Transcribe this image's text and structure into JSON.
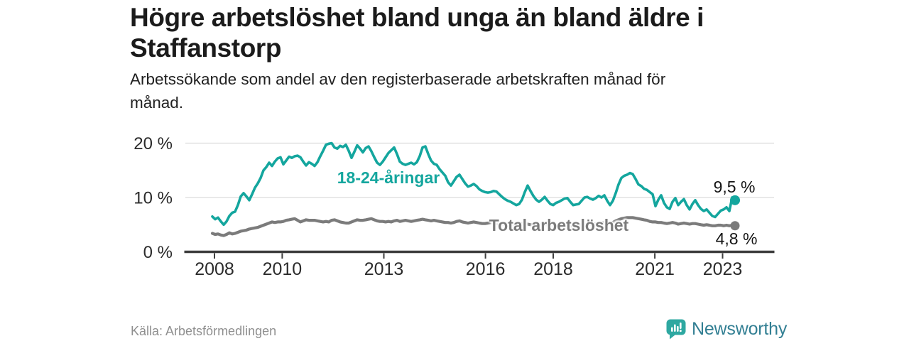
{
  "header": {
    "title_lines": [
      "Högre arbetslöshet bland unga än bland äldre i",
      "Staffanstorp"
    ],
    "subtitle_lines": [
      "Arbetssökande som andel av den registerbaserade arbetskraften månad för",
      "månad."
    ]
  },
  "footer": {
    "source": "Källa: Arbetsförmedlingen",
    "brand": "Newsworthy"
  },
  "colors": {
    "youth": "#14a69e",
    "total": "#7b7b7b",
    "grid": "#dcdcdc",
    "axis": "#3d3d3d",
    "tick_text": "#2b2b2b",
    "logo_icon": "#2ea8a1",
    "logo_text": "#327f93"
  },
  "chart_data": {
    "type": "line",
    "title": "Högre arbetslöshet bland unga än bland äldre i Staffanstorp",
    "subtitle": "Arbetssökande som andel av den registerbaserade arbetskraften månad för månad.",
    "x_unit": "month",
    "x_start": "2008-01",
    "x_end": "2023-05",
    "ylim": [
      0,
      21
    ],
    "grid": "horizontal",
    "y_ticks": [
      {
        "value": 0,
        "label": "0 %"
      },
      {
        "value": 10,
        "label": "10 %"
      },
      {
        "value": 20,
        "label": "20 %"
      }
    ],
    "x_ticks": [
      {
        "year": 2008,
        "label": "2008"
      },
      {
        "year": 2010,
        "label": "2010"
      },
      {
        "year": 2013,
        "label": "2013"
      },
      {
        "year": 2016,
        "label": "2016"
      },
      {
        "year": 2018,
        "label": "2018"
      },
      {
        "year": 2021,
        "label": "2021"
      },
      {
        "year": 2023,
        "label": "2023"
      }
    ],
    "series": [
      {
        "name": "18-24-åringar",
        "color": "#14a69e",
        "end_value": 9.5,
        "end_label": "9,5 %",
        "values": [
          6.5,
          6.0,
          6.3,
          5.6,
          5.0,
          5.6,
          6.6,
          7.2,
          7.4,
          8.6,
          10.2,
          10.8,
          10.2,
          9.5,
          10.6,
          11.8,
          12.6,
          13.6,
          15.0,
          15.6,
          16.4,
          15.8,
          16.6,
          17.2,
          17.4,
          16.1,
          16.8,
          17.5,
          17.3,
          17.6,
          17.7,
          17.4,
          16.6,
          15.9,
          16.5,
          16.2,
          15.8,
          16.5,
          17.6,
          18.6,
          19.7,
          19.9,
          20.0,
          19.2,
          19.0,
          19.5,
          19.3,
          19.7,
          18.6,
          17.3,
          18.4,
          19.6,
          19.0,
          18.3,
          19.1,
          19.4,
          18.5,
          17.4,
          16.4,
          16.0,
          16.6,
          17.4,
          18.2,
          18.7,
          19.2,
          18.0,
          16.6,
          16.2,
          16.0,
          16.2,
          16.4,
          16.1,
          16.5,
          17.6,
          19.2,
          19.4,
          18.0,
          16.8,
          16.2,
          16.0,
          15.2,
          14.6,
          14.0,
          12.8,
          12.2,
          13.0,
          13.8,
          14.2,
          13.4,
          12.6,
          12.0,
          12.2,
          12.5,
          12.1,
          11.5,
          11.2,
          11.0,
          10.9,
          11.0,
          11.2,
          11.1,
          10.6,
          10.1,
          9.7,
          9.4,
          9.2,
          8.9,
          8.6,
          8.8,
          9.6,
          11.0,
          12.2,
          11.2,
          10.3,
          9.6,
          9.2,
          9.6,
          10.1,
          9.4,
          8.8,
          8.6,
          9.0,
          9.2,
          9.5,
          9.8,
          9.9,
          9.2,
          8.6,
          8.7,
          8.8,
          9.4,
          10.0,
          10.1,
          9.8,
          9.6,
          9.9,
          10.3,
          10.0,
          10.4,
          9.4,
          8.6,
          9.4,
          10.8,
          12.4,
          13.6,
          14.0,
          14.2,
          14.5,
          14.3,
          13.4,
          12.4,
          12.1,
          11.6,
          11.4,
          11.0,
          10.6,
          8.4,
          9.6,
          10.4,
          9.0,
          8.2,
          7.9,
          9.2,
          9.9,
          8.6,
          9.2,
          9.7,
          8.6,
          7.8,
          8.8,
          9.5,
          8.6,
          7.9,
          7.5,
          7.8,
          7.2,
          6.6,
          6.4,
          7.0,
          7.6,
          7.8,
          8.2,
          7.5,
          10.0,
          9.5
        ]
      },
      {
        "name": "Total arbetslöshet",
        "color": "#7b7b7b",
        "end_value": 4.8,
        "end_label": "4,8 %",
        "values": [
          3.4,
          3.2,
          3.3,
          3.1,
          3.0,
          3.2,
          3.5,
          3.3,
          3.4,
          3.6,
          3.8,
          3.9,
          4.0,
          4.2,
          4.3,
          4.4,
          4.5,
          4.7,
          4.9,
          5.1,
          5.3,
          5.5,
          5.4,
          5.5,
          5.5,
          5.6,
          5.8,
          5.9,
          6.0,
          6.1,
          5.8,
          5.5,
          5.7,
          5.9,
          5.8,
          5.8,
          5.8,
          5.7,
          5.6,
          5.5,
          5.6,
          5.5,
          5.8,
          5.9,
          5.7,
          5.5,
          5.4,
          5.3,
          5.3,
          5.5,
          5.7,
          5.9,
          5.8,
          5.8,
          5.9,
          6.0,
          6.1,
          5.9,
          5.7,
          5.6,
          5.6,
          5.5,
          5.6,
          5.5,
          5.7,
          5.8,
          5.6,
          5.7,
          5.8,
          5.7,
          5.6,
          5.7,
          5.8,
          5.9,
          6.0,
          5.9,
          5.8,
          5.7,
          5.8,
          5.7,
          5.6,
          5.5,
          5.4,
          5.4,
          5.3,
          5.4,
          5.6,
          5.7,
          5.5,
          5.4,
          5.3,
          5.4,
          5.5,
          5.4,
          5.3,
          5.2,
          5.2,
          5.3,
          5.4,
          5.3,
          5.2,
          5.1,
          5.0,
          5.1,
          5.2,
          5.1,
          5.0,
          5.0,
          5.1,
          5.2,
          5.2,
          5.1,
          5.0,
          5.0,
          4.9,
          5.0,
          5.1,
          5.0,
          5.0,
          4.9,
          4.9,
          4.9,
          5.0,
          4.9,
          4.8,
          4.8,
          4.7,
          4.8,
          4.8,
          4.9,
          5.0,
          5.0,
          5.0,
          5.1,
          5.1,
          5.2,
          5.2,
          5.3,
          5.4,
          5.3,
          5.2,
          5.4,
          5.7,
          5.9,
          6.1,
          6.2,
          6.3,
          6.3,
          6.3,
          6.2,
          6.1,
          6.0,
          5.9,
          5.8,
          5.6,
          5.5,
          5.5,
          5.4,
          5.4,
          5.3,
          5.2,
          5.3,
          5.4,
          5.3,
          5.1,
          5.2,
          5.3,
          5.2,
          5.1,
          5.2,
          5.2,
          5.1,
          5.0,
          4.9,
          5.0,
          4.9,
          4.8,
          4.8,
          4.9,
          4.9,
          4.8,
          4.9,
          4.8,
          4.9,
          4.8
        ]
      }
    ]
  }
}
